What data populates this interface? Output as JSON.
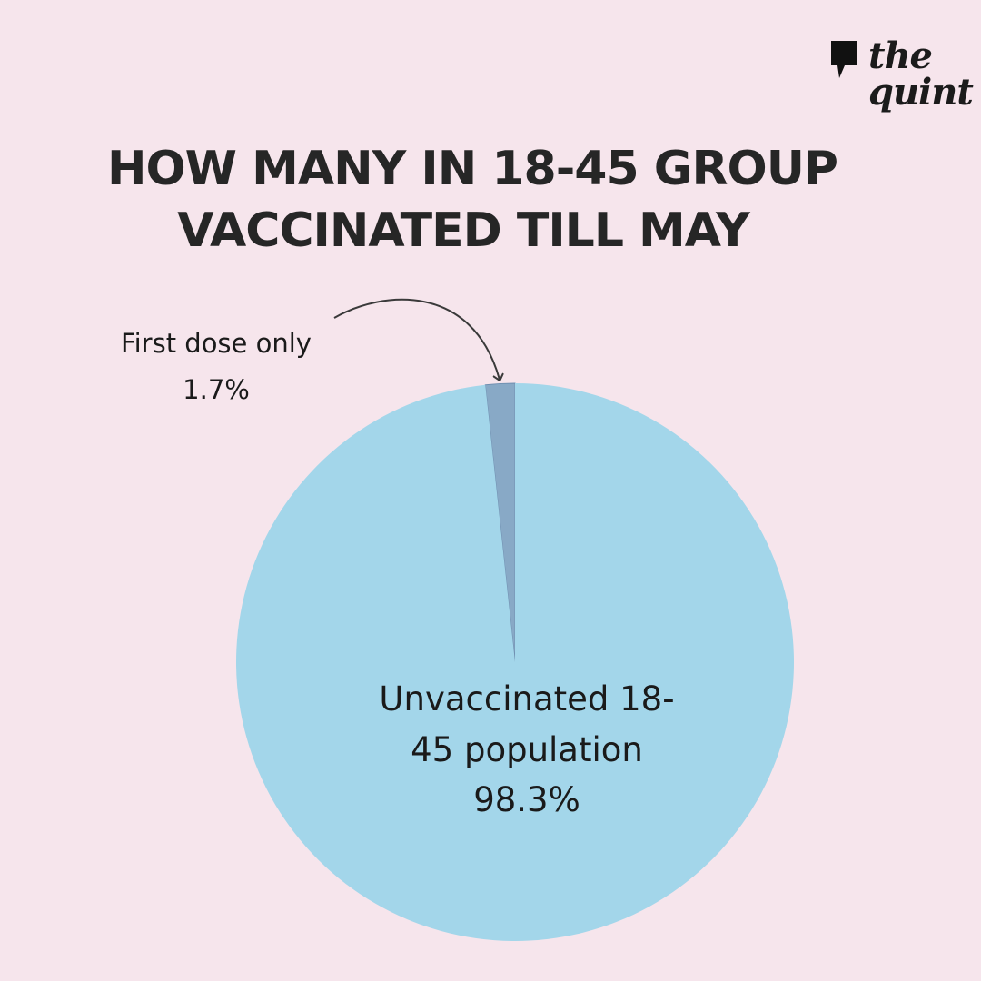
{
  "brand": {
    "line1": "the",
    "line2": "quint"
  },
  "chart_data": {
    "type": "pie",
    "title_lines": [
      "HOW MANY IN 18-45 GROUP",
      "VACCINATED TILL MAY"
    ],
    "slices": [
      {
        "label_lines": [
          "First dose only",
          "1.7%"
        ],
        "value": 1.7,
        "color": "#88a9c6"
      },
      {
        "label_lines": [
          "Unvaccinated 18-",
          "45 population",
          "98.3%"
        ],
        "value": 98.3,
        "color": "#a3d6ea"
      }
    ]
  },
  "colors": {
    "background": "#f6e5ec",
    "title": "#262626",
    "slice_border": "#6f8fb0"
  }
}
